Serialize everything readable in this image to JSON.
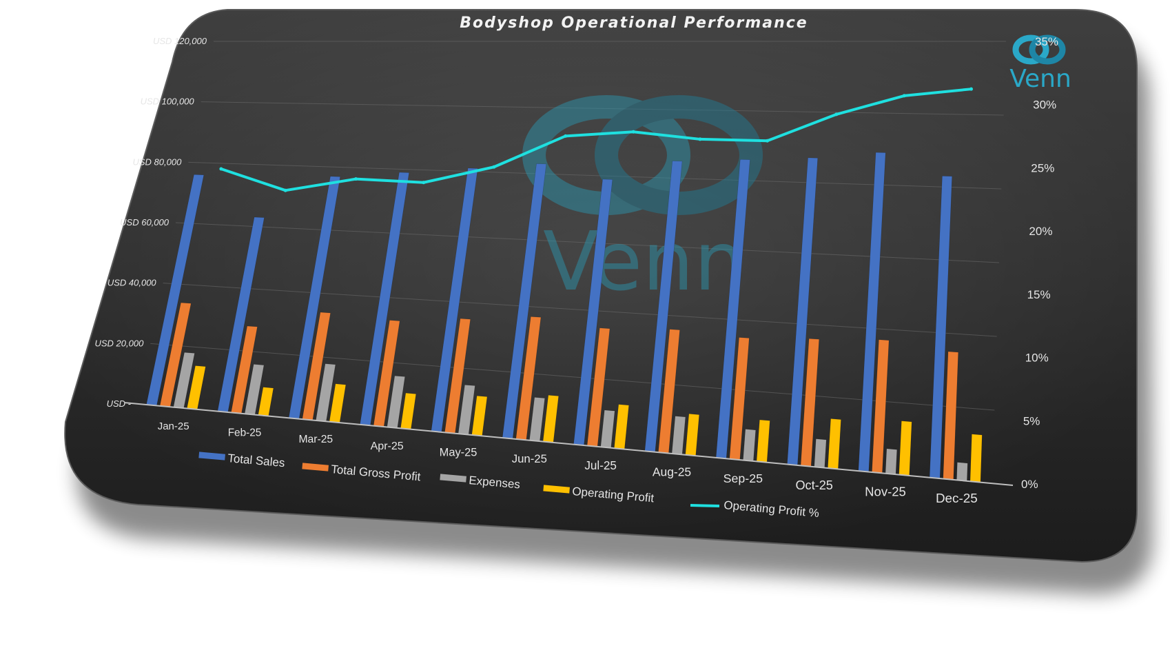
{
  "chart_data": {
    "type": "bar",
    "title": "Bodyshop Operational Performance",
    "categories": [
      "Jan-25",
      "Feb-25",
      "Mar-25",
      "Apr-25",
      "May-25",
      "Jun-25",
      "Jul-25",
      "Aug-25",
      "Sep-25",
      "Oct-25",
      "Nov-25",
      "Dec-25"
    ],
    "series": [
      {
        "name": "Total Sales",
        "type": "bar",
        "axis": "left",
        "color": "#4472C4",
        "values": [
          76000,
          63000,
          77000,
          79000,
          81000,
          83000,
          79000,
          85000,
          86000,
          87000,
          89000,
          83000
        ]
      },
      {
        "name": "Total Gross Profit",
        "type": "bar",
        "axis": "left",
        "color": "#ED7D31",
        "values": [
          34000,
          28000,
          34000,
          33000,
          35000,
          37000,
          35000,
          36000,
          35000,
          36000,
          37000,
          35000
        ]
      },
      {
        "name": "Expenses",
        "type": "bar",
        "axis": "left",
        "color": "#A5A5A5",
        "values": [
          18000,
          16000,
          18000,
          16000,
          15000,
          13000,
          11000,
          11000,
          9000,
          8000,
          7000,
          5000
        ]
      },
      {
        "name": "Operating Profit",
        "type": "bar",
        "axis": "left",
        "color": "#FFC000",
        "values": [
          14000,
          9000,
          12000,
          11000,
          12000,
          14000,
          13000,
          12000,
          12000,
          14000,
          15000,
          13000
        ]
      },
      {
        "name": "Operating Profit %",
        "type": "line",
        "axis": "right",
        "color": "#1FE0E0",
        "values": [
          22.8,
          21.0,
          22.3,
          22.2,
          23.8,
          26.7,
          27.2,
          26.7,
          26.7,
          29.0,
          30.6,
          31.2
        ]
      }
    ],
    "left_axis": {
      "ylim": [
        0,
        120000
      ],
      "ticks": [
        "USD -",
        "USD 20,000",
        "USD 40,000",
        "USD 60,000",
        "USD 80,000",
        "USD 100,000",
        "USD 120,000"
      ]
    },
    "right_axis": {
      "ylim": [
        0,
        35
      ],
      "ticks": [
        "0%",
        "5%",
        "10%",
        "15%",
        "20%",
        "25%",
        "30%",
        "35%"
      ]
    },
    "grid": true,
    "legend_position": "bottom",
    "logo_text": "Venn",
    "colors": {
      "background": "#2b2b2b",
      "line": "#1FE0E0",
      "logo": "#1f8fa8"
    }
  }
}
